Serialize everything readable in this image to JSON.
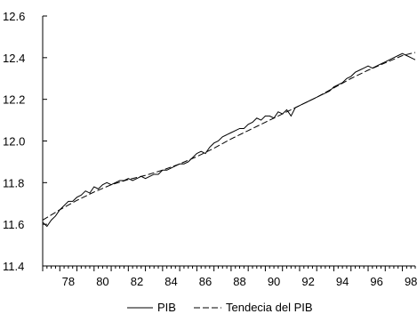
{
  "chart_data": {
    "type": "line",
    "title": "",
    "xlabel": "",
    "ylabel": "",
    "xlim": [
      1977,
      1998.75
    ],
    "ylim": [
      11.4,
      12.6
    ],
    "x_tick_labels": [
      "78",
      "80",
      "82",
      "84",
      "86",
      "88",
      "90",
      "92",
      "94",
      "96",
      "98"
    ],
    "y_tick_labels": [
      "11.4",
      "11.6",
      "11.8",
      "12.0",
      "12.2",
      "12.4",
      "12.6"
    ],
    "grid": false,
    "legend_position": "bottom",
    "series": [
      {
        "name": "PIB",
        "style": "solid",
        "color": "#000000",
        "x": [
          1977.0,
          1977.25,
          1977.5,
          1977.75,
          1978.0,
          1978.25,
          1978.5,
          1978.75,
          1979.0,
          1979.25,
          1979.5,
          1979.75,
          1980.0,
          1980.25,
          1980.5,
          1980.75,
          1981.0,
          1981.25,
          1981.5,
          1981.75,
          1982.0,
          1982.25,
          1982.5,
          1982.75,
          1983.0,
          1983.25,
          1983.5,
          1983.75,
          1984.0,
          1984.25,
          1984.5,
          1984.75,
          1985.0,
          1985.25,
          1985.5,
          1985.75,
          1986.0,
          1986.25,
          1986.5,
          1986.75,
          1987.0,
          1987.25,
          1987.5,
          1987.75,
          1988.0,
          1988.25,
          1988.5,
          1988.75,
          1989.0,
          1989.25,
          1989.5,
          1989.75,
          1990.0,
          1990.25,
          1990.5,
          1990.75,
          1991.0,
          1991.25,
          1991.5,
          1991.75,
          1992.0,
          1992.25,
          1992.5,
          1992.75,
          1993.0,
          1993.25,
          1993.5,
          1993.75,
          1994.0,
          1994.25,
          1994.5,
          1994.75,
          1995.0,
          1995.25,
          1995.5,
          1995.75,
          1996.0,
          1996.25,
          1996.5,
          1996.75,
          1997.0,
          1997.25,
          1997.5,
          1997.75,
          1998.0,
          1998.25,
          1998.5,
          1998.75
        ],
        "values": [
          11.61,
          11.59,
          11.62,
          11.64,
          11.67,
          11.69,
          11.71,
          11.71,
          11.73,
          11.74,
          11.76,
          11.75,
          11.78,
          11.77,
          11.79,
          11.8,
          11.79,
          11.8,
          11.81,
          11.81,
          11.82,
          11.81,
          11.82,
          11.83,
          11.82,
          11.83,
          11.84,
          11.84,
          11.86,
          11.86,
          11.87,
          11.88,
          11.89,
          11.89,
          11.9,
          11.92,
          11.94,
          11.95,
          11.94,
          11.97,
          11.99,
          12.0,
          12.02,
          12.03,
          12.04,
          12.05,
          12.06,
          12.06,
          12.08,
          12.09,
          12.11,
          12.1,
          12.12,
          12.12,
          12.11,
          12.14,
          12.13,
          12.15,
          12.12,
          12.16,
          12.17,
          12.18,
          12.19,
          12.2,
          12.21,
          12.22,
          12.23,
          12.24,
          12.26,
          12.27,
          12.28,
          12.3,
          12.31,
          12.33,
          12.34,
          12.35,
          12.36,
          12.35,
          12.36,
          12.37,
          12.38,
          12.39,
          12.4,
          12.41,
          12.42,
          12.41,
          12.4,
          12.39
        ]
      },
      {
        "name": "Tendecia del PIB",
        "style": "dashed",
        "color": "#000000",
        "x": [
          1977.0,
          1978.0,
          1979.0,
          1980.0,
          1981.0,
          1982.0,
          1983.0,
          1984.0,
          1985.0,
          1986.0,
          1987.0,
          1988.0,
          1989.0,
          1990.0,
          1991.0,
          1992.0,
          1993.0,
          1994.0,
          1995.0,
          1996.0,
          1997.0,
          1998.0,
          1998.75
        ],
        "values": [
          11.62,
          11.67,
          11.715,
          11.755,
          11.79,
          11.815,
          11.835,
          11.86,
          11.89,
          11.925,
          11.965,
          12.01,
          12.05,
          12.09,
          12.13,
          12.17,
          12.21,
          12.255,
          12.3,
          12.34,
          12.375,
          12.41,
          12.425
        ]
      }
    ]
  }
}
